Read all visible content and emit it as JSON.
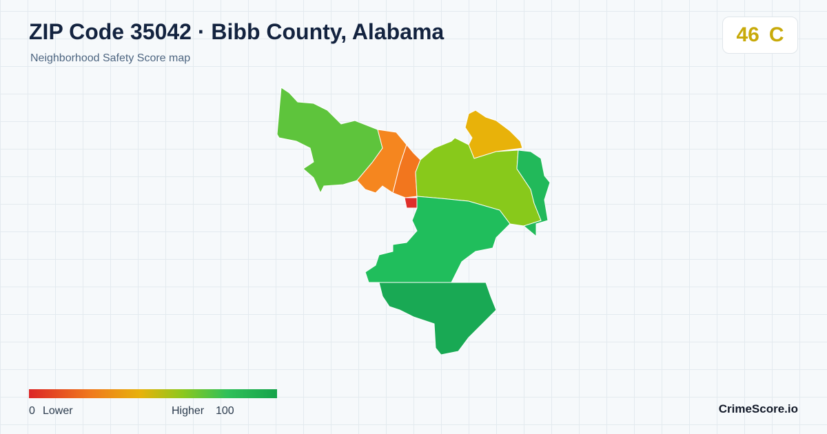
{
  "header": {
    "title": "ZIP Code 35042 · Bibb County, Alabama",
    "subtitle": "Neighborhood Safety Score map"
  },
  "badge": {
    "score": 46,
    "grade": "C"
  },
  "legend": {
    "min": 0,
    "low_label": "Lower",
    "high_label": "Higher",
    "max": 100
  },
  "footer": {
    "brand": "CrimeScore.io"
  }
}
